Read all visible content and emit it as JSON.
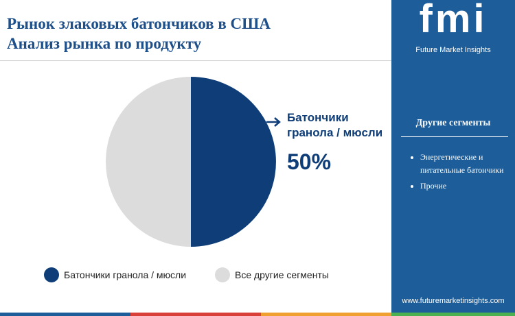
{
  "chart_data": {
    "type": "pie",
    "title": "Рынок злаковых батончиков в США",
    "subtitle": "Анализ рынка по продукту",
    "categories": [
      "Батончики гранола / мюсли",
      "Все другие сегменты"
    ],
    "values": [
      50,
      50
    ],
    "value_labels": [
      "50%",
      null
    ],
    "colors": [
      "#0e3d78",
      "#dcdcdc"
    ],
    "legend": "bottom"
  },
  "sidebar": {
    "logo": "fmi",
    "brand": "Future Market Insights",
    "heading": "Другие сегменты",
    "items": [
      "Энергетические и питательные батончики",
      "Прочие"
    ],
    "url": "www.futuremarketinsights.com"
  }
}
